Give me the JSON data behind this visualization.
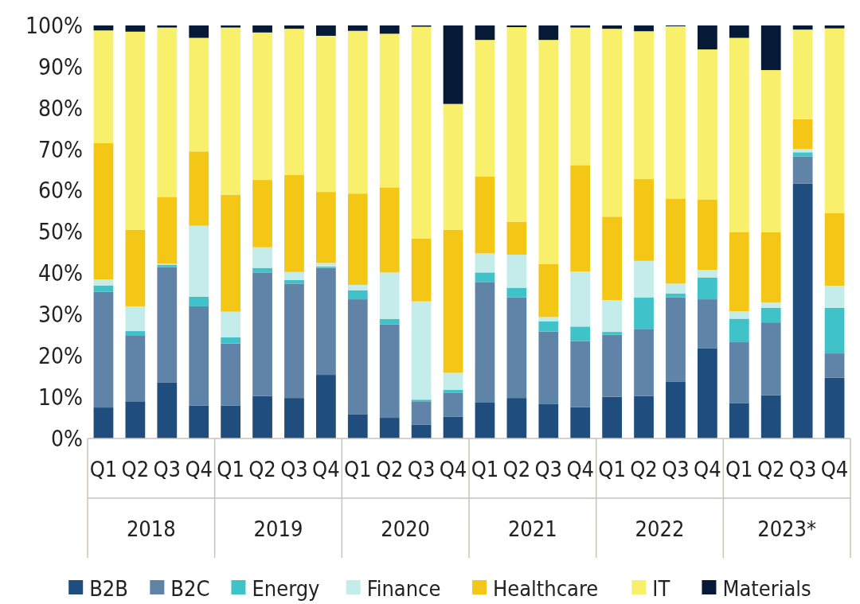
{
  "chart_data": {
    "type": "bar",
    "stacked": true,
    "categories": [
      "Q1",
      "Q2",
      "Q3",
      "Q4",
      "Q1",
      "Q2",
      "Q3",
      "Q4",
      "Q1",
      "Q2",
      "Q3",
      "Q4",
      "Q1",
      "Q2",
      "Q3",
      "Q4",
      "Q1",
      "Q2",
      "Q3",
      "Q4",
      "Q1",
      "Q2",
      "Q3",
      "Q4"
    ],
    "annotations": [
      "2018",
      "2019",
      "2020",
      "2021",
      "2022",
      "2023*"
    ],
    "ylim": [
      0,
      100
    ],
    "yticks": [
      {
        "value": 0,
        "label": "0%"
      },
      {
        "value": 10,
        "label": "10%"
      },
      {
        "value": 20,
        "label": "20%"
      },
      {
        "value": 30,
        "label": "30%"
      },
      {
        "value": 40,
        "label": "40%"
      },
      {
        "value": 50,
        "label": "50%"
      },
      {
        "value": 60,
        "label": "60%"
      },
      {
        "value": 70,
        "label": "70%"
      },
      {
        "value": 80,
        "label": "80%"
      },
      {
        "value": 90,
        "label": "90%"
      },
      {
        "value": 100,
        "label": "100%"
      }
    ],
    "legend": "bottom",
    "grid": false,
    "series": [
      {
        "name": "B2B",
        "color": "#1f4e7e",
        "values": [
          7.5,
          9,
          13.5,
          8,
          8,
          10.3,
          9.8,
          15.4,
          5.9,
          5,
          3.3,
          5.3,
          8.8,
          9.8,
          8.3,
          7.6,
          10.1,
          10.3,
          13.8,
          21.8,
          8.5,
          10.5,
          61.7,
          14.7
        ]
      },
      {
        "name": "B2C",
        "color": "#6083a8",
        "values": [
          28,
          16,
          28,
          24,
          15,
          29.9,
          27.7,
          25.9,
          27.8,
          22.6,
          5.7,
          5.7,
          29.1,
          24.4,
          17.6,
          16,
          15,
          16.1,
          20.4,
          11.9,
          14.8,
          17.6,
          6.6,
          5.9
        ]
      },
      {
        "name": "Energy",
        "color": "#40c2c9",
        "values": [
          1.5,
          1,
          0.5,
          2.3,
          1.5,
          1.1,
          0.9,
          0.3,
          2.2,
          1.3,
          0.4,
          0.8,
          2.3,
          2.3,
          2.5,
          3.5,
          0.7,
          7.7,
          0.9,
          5.3,
          5.7,
          3.5,
          1,
          11
        ]
      },
      {
        "name": "Finance",
        "color": "#c3ecea",
        "values": [
          1.5,
          6,
          0.3,
          17.2,
          6.2,
          5,
          1.9,
          0.9,
          1.3,
          11.3,
          23.8,
          4.1,
          4.6,
          8,
          1,
          13.3,
          7.7,
          8.9,
          2.4,
          1.8,
          1.8,
          1.3,
          0.8,
          5.4
        ]
      },
      {
        "name": "Healthcare",
        "color": "#f4c716",
        "values": [
          33,
          18.5,
          16.2,
          18,
          28.3,
          16.3,
          23.5,
          17.2,
          22.1,
          20.6,
          15.2,
          34.6,
          18.6,
          8,
          12.8,
          25.8,
          20.2,
          19.8,
          20.6,
          17,
          19.2,
          17.1,
          7.2,
          17.6
        ]
      },
      {
        "name": "IT",
        "color": "#f8f06a",
        "values": [
          27.3,
          48,
          41,
          27.5,
          40.5,
          35.7,
          35.4,
          37.8,
          39.4,
          37.2,
          51.3,
          30.5,
          33.1,
          47.1,
          54.3,
          33.3,
          45.5,
          35.8,
          41.7,
          36.4,
          47,
          39.2,
          21.7,
          44.7
        ]
      },
      {
        "name": "Materials",
        "color": "#061a38",
        "values": [
          1.2,
          1.5,
          0.5,
          3,
          0.5,
          1.7,
          0.8,
          2.5,
          1.3,
          2,
          0.3,
          19,
          3.5,
          0.4,
          3.5,
          0.5,
          0.8,
          1.4,
          0.2,
          5.8,
          3,
          10.8,
          1,
          0.7
        ]
      }
    ]
  }
}
